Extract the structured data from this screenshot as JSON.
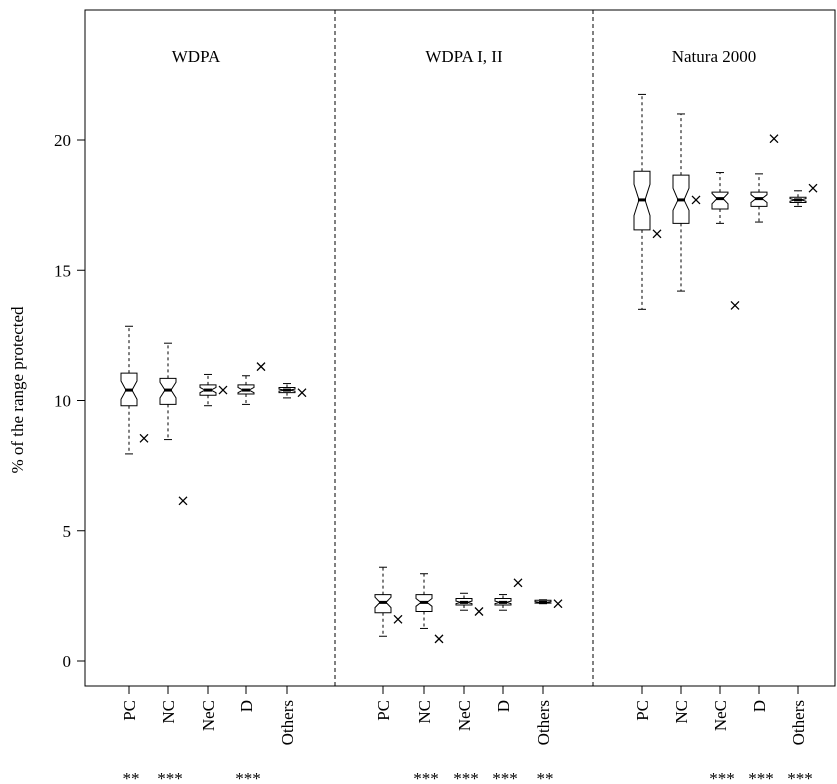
{
  "chart_data": {
    "type": "boxplot",
    "ylabel": "% of the range protected",
    "ylim": [
      -1,
      25
    ],
    "yticks": [
      0,
      5,
      10,
      15,
      20
    ],
    "categories": [
      "PC",
      "NC",
      "NeC",
      "D",
      "Others"
    ],
    "panels": [
      {
        "title": "WDPA",
        "boxes": [
          {
            "category": "PC",
            "whisker_low": 7.95,
            "q1": 9.8,
            "median": 10.4,
            "q3": 11.05,
            "whisker_high": 12.85,
            "notch_low": 10.05,
            "notch_high": 10.75,
            "cross": 8.55,
            "significance": "**"
          },
          {
            "category": "NC",
            "whisker_low": 8.5,
            "q1": 9.85,
            "median": 10.4,
            "q3": 10.85,
            "whisker_high": 12.2,
            "notch_low": 10.1,
            "notch_high": 10.7,
            "cross": 6.15,
            "significance": "***"
          },
          {
            "category": "NeC",
            "whisker_low": 9.8,
            "q1": 10.2,
            "median": 10.4,
            "q3": 10.6,
            "whisker_high": 11.0,
            "notch_low": 10.3,
            "notch_high": 10.5,
            "cross": 10.4,
            "significance": ""
          },
          {
            "category": "D",
            "whisker_low": 9.85,
            "q1": 10.25,
            "median": 10.4,
            "q3": 10.6,
            "whisker_high": 10.95,
            "notch_low": 10.3,
            "notch_high": 10.5,
            "cross": 11.3,
            "significance": "***"
          },
          {
            "category": "Others",
            "whisker_low": 10.1,
            "q1": 10.3,
            "median": 10.4,
            "q3": 10.5,
            "whisker_high": 10.65,
            "notch_low": 10.36,
            "notch_high": 10.44,
            "cross": 10.3,
            "significance": ""
          }
        ]
      },
      {
        "title": "WDPA I, II",
        "boxes": [
          {
            "category": "PC",
            "whisker_low": 0.95,
            "q1": 1.85,
            "median": 2.25,
            "q3": 2.55,
            "whisker_high": 3.6,
            "notch_low": 2.05,
            "notch_high": 2.45,
            "cross": 1.6,
            "significance": ""
          },
          {
            "category": "NC",
            "whisker_low": 1.25,
            "q1": 1.9,
            "median": 2.25,
            "q3": 2.55,
            "whisker_high": 3.35,
            "notch_low": 2.1,
            "notch_high": 2.4,
            "cross": 0.85,
            "significance": "***"
          },
          {
            "category": "NeC",
            "whisker_low": 1.95,
            "q1": 2.15,
            "median": 2.25,
            "q3": 2.4,
            "whisker_high": 2.6,
            "notch_low": 2.2,
            "notch_high": 2.3,
            "cross": 1.9,
            "significance": "***"
          },
          {
            "category": "D",
            "whisker_low": 1.95,
            "q1": 2.15,
            "median": 2.25,
            "q3": 2.4,
            "whisker_high": 2.55,
            "notch_low": 2.2,
            "notch_high": 2.3,
            "cross": 3.0,
            "significance": "***"
          },
          {
            "category": "Others",
            "whisker_low": 2.2,
            "q1": 2.22,
            "median": 2.25,
            "q3": 2.33,
            "whisker_high": 2.35,
            "notch_low": 2.23,
            "notch_high": 2.28,
            "cross": 2.2,
            "significance": "**"
          }
        ]
      },
      {
        "title": "Natura 2000",
        "boxes": [
          {
            "category": "PC",
            "whisker_low": 13.5,
            "q1": 16.55,
            "median": 17.7,
            "q3": 18.8,
            "whisker_high": 21.75,
            "notch_low": 17.1,
            "notch_high": 18.3,
            "cross": 16.4,
            "significance": ""
          },
          {
            "category": "NC",
            "whisker_low": 14.2,
            "q1": 16.8,
            "median": 17.7,
            "q3": 18.65,
            "whisker_high": 21.0,
            "notch_low": 17.3,
            "notch_high": 18.15,
            "cross": 17.7,
            "significance": ""
          },
          {
            "category": "NeC",
            "whisker_low": 16.8,
            "q1": 17.35,
            "median": 17.75,
            "q3": 18.0,
            "whisker_high": 18.75,
            "notch_low": 17.55,
            "notch_high": 17.95,
            "cross": 13.65,
            "significance": "***"
          },
          {
            "category": "D",
            "whisker_low": 16.85,
            "q1": 17.45,
            "median": 17.75,
            "q3": 18.0,
            "whisker_high": 18.7,
            "notch_low": 17.6,
            "notch_high": 17.9,
            "cross": 20.05,
            "significance": "***"
          },
          {
            "category": "Others",
            "whisker_low": 17.45,
            "q1": 17.6,
            "median": 17.7,
            "q3": 17.8,
            "whisker_high": 18.05,
            "notch_low": 17.65,
            "notch_high": 17.75,
            "cross": 18.15,
            "significance": "***"
          }
        ]
      }
    ]
  }
}
